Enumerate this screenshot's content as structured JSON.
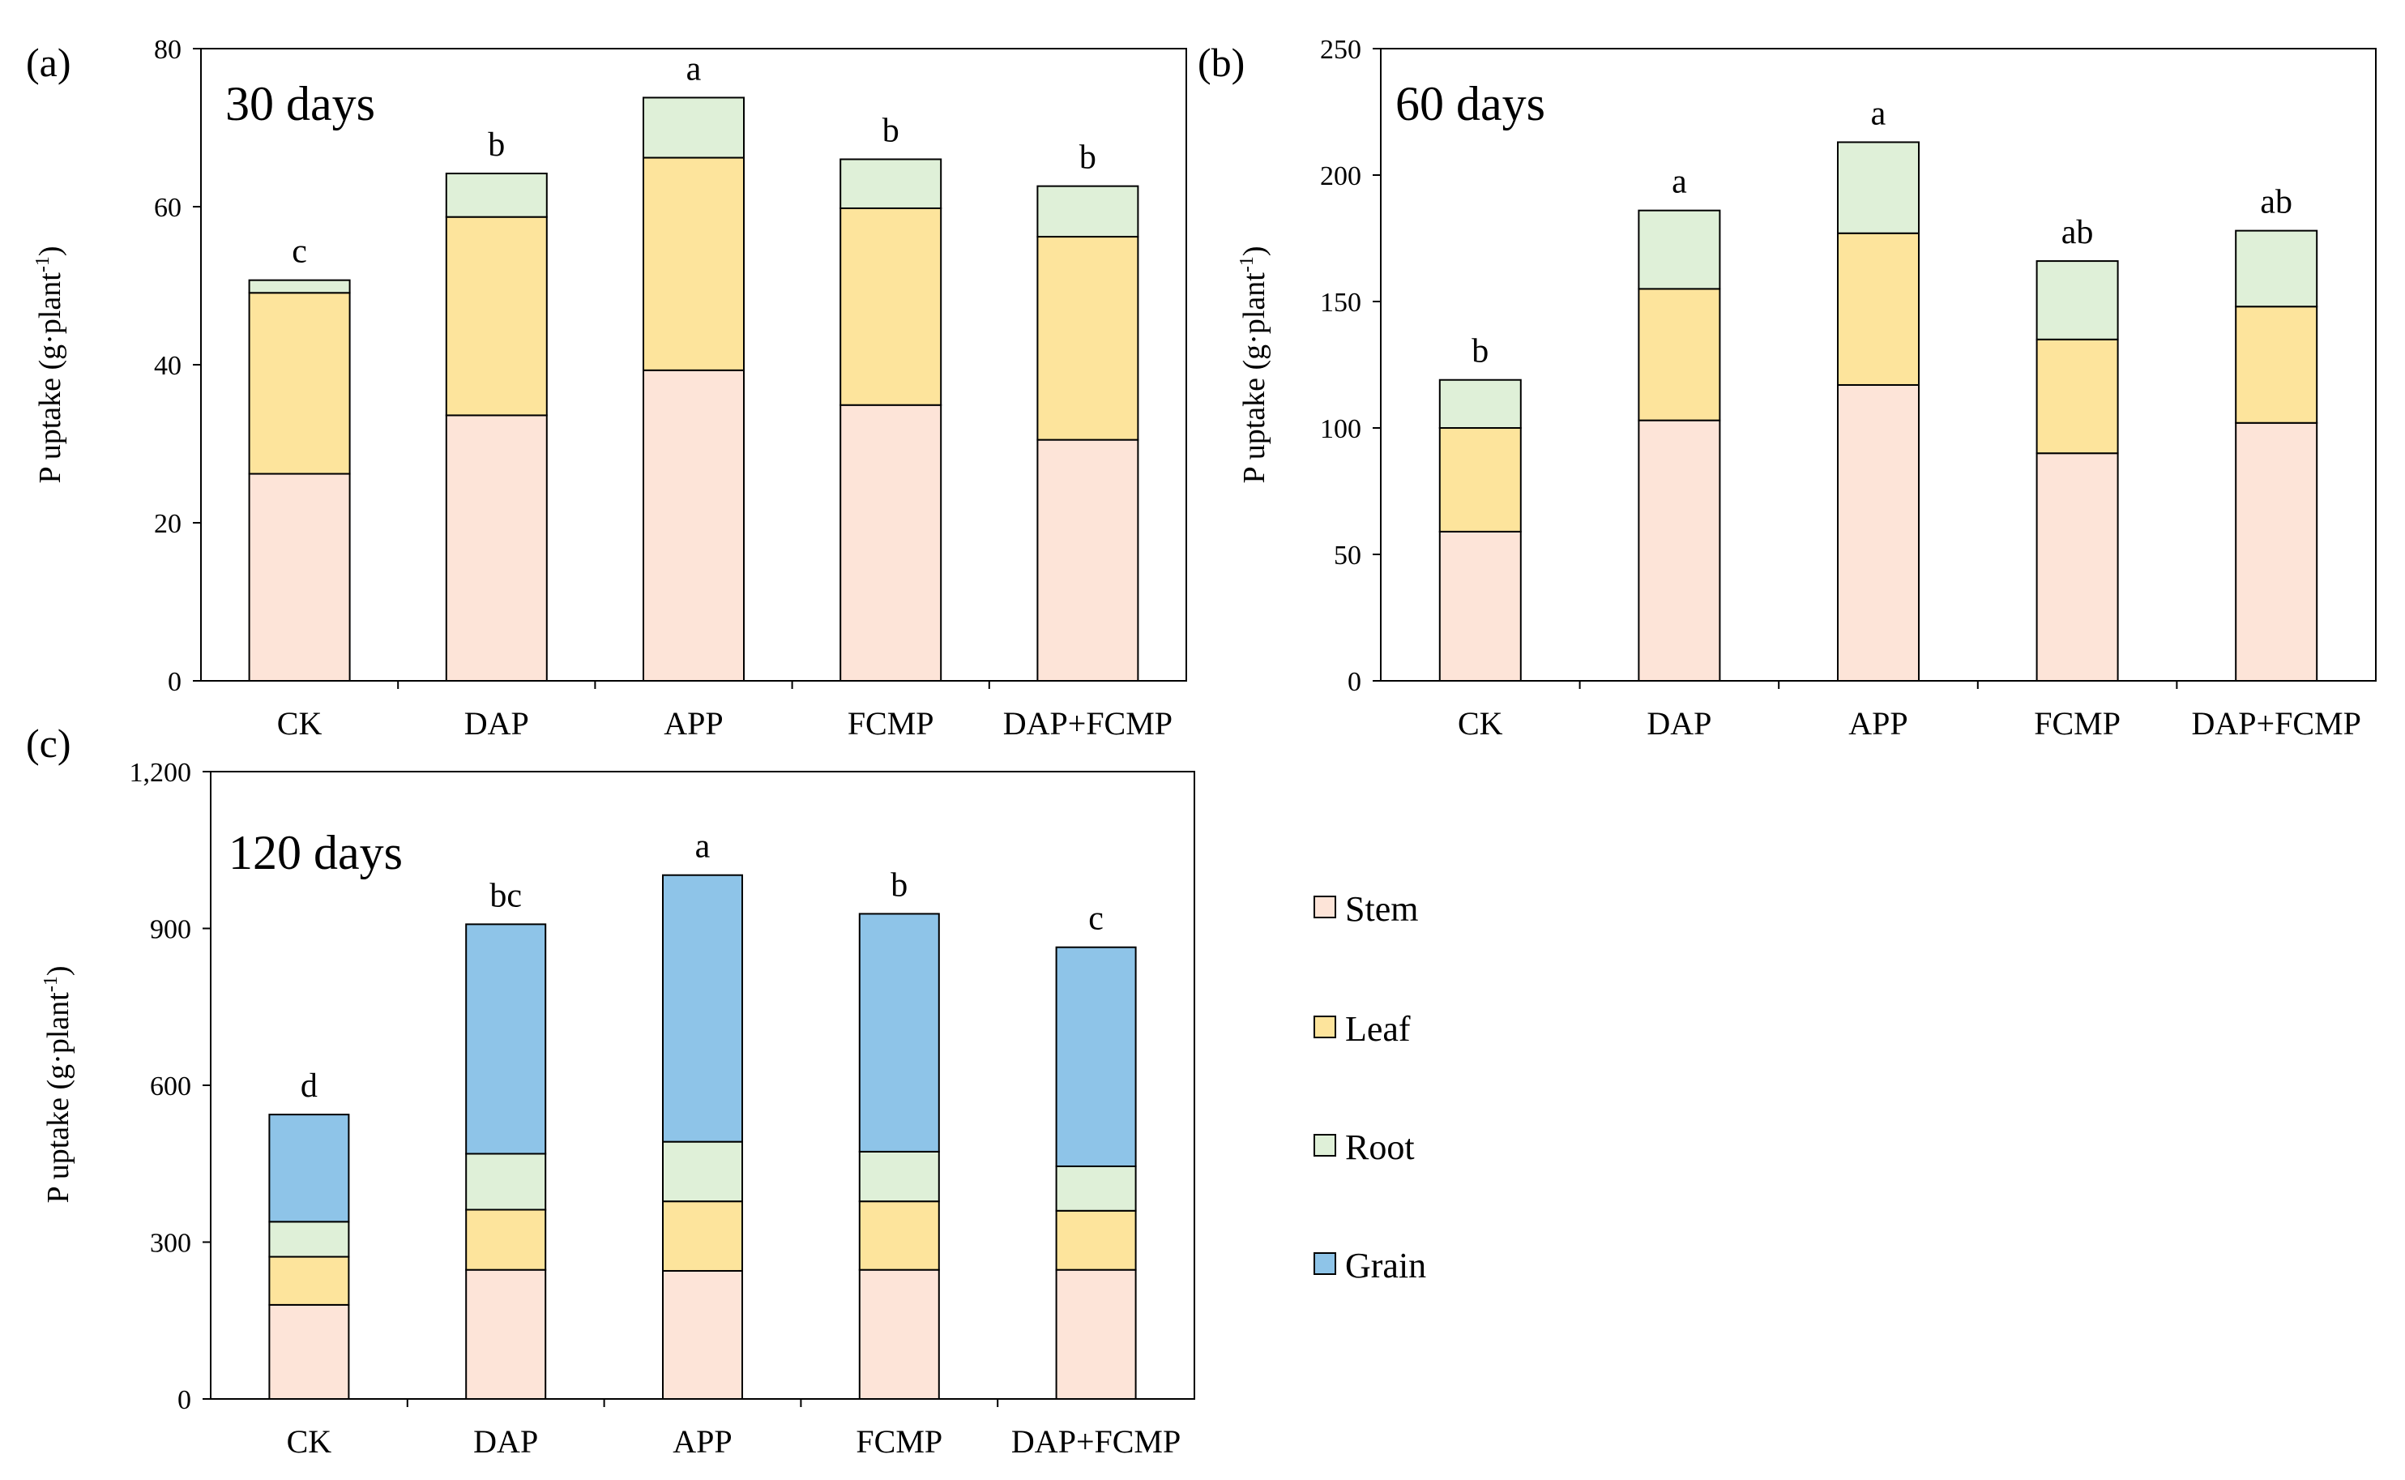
{
  "chart_data": [
    {
      "type": "bar",
      "stacked": true,
      "panel_label": "(a)",
      "title": "30 days",
      "ylabel": "P uptake (g·plant",
      "ylabel_sup": "-1",
      "ylabel_close": ")",
      "ylim": [
        0,
        80
      ],
      "yticks": [
        "0",
        "20",
        "40",
        "60",
        "80"
      ],
      "ytick_values": [
        0,
        20,
        40,
        60,
        80
      ],
      "categories": [
        "CK",
        "DAP",
        "APP",
        "FCMP",
        "DAP+FCMP"
      ],
      "series": [
        {
          "name": "Stem",
          "values": [
            26.2,
            33.6,
            39.3,
            34.9,
            30.5
          ]
        },
        {
          "name": "Leaf",
          "values": [
            22.9,
            25.1,
            26.9,
            24.9,
            25.7
          ]
        },
        {
          "name": "Root",
          "values": [
            1.6,
            5.5,
            7.6,
            6.2,
            6.4
          ]
        }
      ],
      "significance": [
        "c",
        "b",
        "a",
        "b",
        "b"
      ]
    },
    {
      "type": "bar",
      "stacked": true,
      "panel_label": "(b)",
      "title": "60 days",
      "ylabel": "P uptake (g·plant",
      "ylabel_sup": "-1",
      "ylabel_close": ")",
      "ylim": [
        0,
        250
      ],
      "yticks": [
        "0",
        "50",
        "100",
        "150",
        "200",
        "250"
      ],
      "ytick_values": [
        0,
        50,
        100,
        150,
        200,
        250
      ],
      "categories": [
        "CK",
        "DAP",
        "APP",
        "FCMP",
        "DAP+FCMP"
      ],
      "series": [
        {
          "name": "Stem",
          "values": [
            59,
            103,
            117,
            90,
            102
          ]
        },
        {
          "name": "Leaf",
          "values": [
            41,
            52,
            60,
            45,
            46
          ]
        },
        {
          "name": "Root",
          "values": [
            19,
            31,
            36,
            31,
            30
          ]
        }
      ],
      "significance": [
        "b",
        "a",
        "a",
        "ab",
        "ab"
      ]
    },
    {
      "type": "bar",
      "stacked": true,
      "panel_label": "(c)",
      "title": "120 days",
      "ylabel": "P uptake (g·plant",
      "ylabel_sup": "-1",
      "ylabel_close": ")",
      "ylim": [
        0,
        1200
      ],
      "yticks": [
        "0",
        "300",
        "600",
        "900",
        "1,200"
      ],
      "ytick_values": [
        0,
        300,
        600,
        900,
        1200
      ],
      "categories": [
        "CK",
        "DAP",
        "APP",
        "FCMP",
        "DAP+FCMP"
      ],
      "series": [
        {
          "name": "Stem",
          "values": [
            180,
            247,
            245,
            247,
            247
          ]
        },
        {
          "name": "Leaf",
          "values": [
            92,
            115,
            133,
            131,
            113
          ]
        },
        {
          "name": "Root",
          "values": [
            67,
            107,
            114,
            95,
            85
          ]
        },
        {
          "name": "Grain",
          "values": [
            205,
            439,
            510,
            455,
            419
          ]
        }
      ],
      "significance": [
        "d",
        "bc",
        "a",
        "b",
        "c"
      ]
    }
  ],
  "legend": [
    "Stem",
    "Leaf",
    "Root",
    "Grain"
  ],
  "colors": {
    "Stem": "#fde4d8",
    "Leaf": "#fde49c",
    "Root": "#dff0d8",
    "Grain": "#8ec4e8",
    "stroke": "#000000"
  }
}
